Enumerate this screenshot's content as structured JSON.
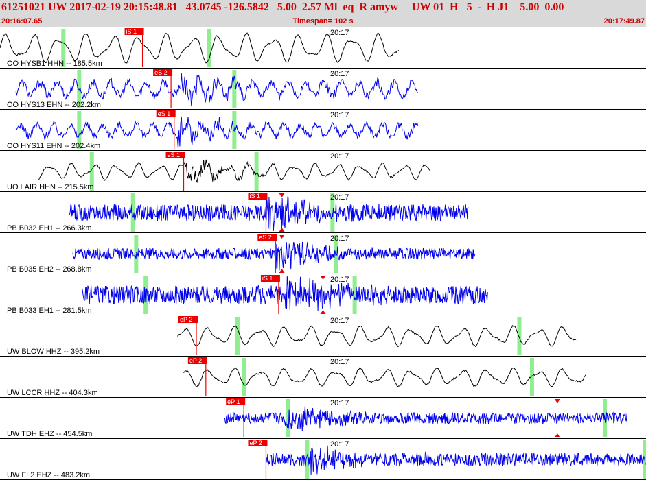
{
  "header": {
    "title": "61251021 UW 2017-02-19 20:15:48.81   43.0745 -126.5842   5.00  2.57 Ml  eq  R amyw     UW 01  H   5  -  H J1    5.00  0.00",
    "start_time": "20:16:07.65",
    "timespan": "Timespan= 102 s",
    "end_time": "20:17:49.87"
  },
  "colors": {
    "blue": "#0000ee",
    "black": "#000000",
    "pick": "#ee0000",
    "marker": "#90ee90",
    "bg": "#ffffff",
    "header_bg": "#d9d9d9"
  },
  "chart_data": {
    "type": "line",
    "title": "61251021 UW 2017-02-19 20:15:48.81   43.0745 -126.5842   5.00  2.57 Ml  eq  R amyw     UW 01  H   5  -  H J1    5.00  0.00",
    "x_start": "20:16:07.65",
    "x_end": "20:17:49.87",
    "timespan_s": 102,
    "minute_label": "20:17",
    "minute_tick_s": 52.35,
    "traces": [
      {
        "label": "OO HYSB1 HHN -- 185.5km",
        "color": "black",
        "start_s": 0,
        "end_s": 63,
        "pick": "iS 1",
        "pick_s": 22.5,
        "green_s": [
          10,
          33
        ],
        "style": "smooth",
        "amp": 0.8,
        "period": 4.2,
        "burst_s": null,
        "burst_amp": 0
      },
      {
        "label": "OO HYS13 EHN -- 202.2km",
        "color": "blue",
        "start_s": 2.5,
        "end_s": 66,
        "pick": "eS 2",
        "pick_s": 27,
        "green_s": [
          12.5,
          37
        ],
        "style": "noisy",
        "amp": 0.6,
        "period": 2.8,
        "burst_s": 28,
        "burst_amp": 0.8
      },
      {
        "label": "OO HYS11 EHN -- 202.4km",
        "color": "blue",
        "start_s": 2.5,
        "end_s": 66,
        "pick": "eS 1",
        "pick_s": 27.5,
        "green_s": [
          12.5,
          37
        ],
        "style": "noisy",
        "amp": 0.5,
        "period": 2.6,
        "burst_s": 28,
        "burst_amp": 0.85
      },
      {
        "label": "UO LAIR HHN -- 215.5km",
        "color": "black",
        "start_s": 6,
        "end_s": 68,
        "pick": "eS 1",
        "pick_s": 29,
        "green_s": [
          14.5,
          40.5
        ],
        "style": "smooth",
        "amp": 0.45,
        "period": 3.5,
        "burst_s": 29,
        "burst_amp": 0.6
      },
      {
        "label": "PB B032 EH1 -- 266.3km",
        "color": "blue",
        "start_s": 11,
        "end_s": 74,
        "pick": "iS 1",
        "pick_s": 42,
        "green_s": [
          21,
          52.5
        ],
        "style": "hf",
        "amp": 0.45,
        "period": 0.6,
        "burst_s": 42,
        "burst_amp": 1.0,
        "amp_markers_s": [
          44.5
        ]
      },
      {
        "label": "PB B035 EH2 -- 268.8km",
        "color": "blue",
        "start_s": 11.5,
        "end_s": 75,
        "pick": "eS 2",
        "pick_s": 43.5,
        "green_s": [
          21.5,
          53
        ],
        "style": "hf",
        "amp": 0.3,
        "period": 0.6,
        "burst_s": 43.5,
        "burst_amp": 1.0,
        "amp_markers_s": [
          44.5
        ]
      },
      {
        "label": "PB B033 EH1 -- 281.5km",
        "color": "blue",
        "start_s": 13,
        "end_s": 77,
        "pick": "iS 1",
        "pick_s": 44,
        "green_s": [
          23,
          56
        ],
        "style": "hf",
        "amp": 0.5,
        "period": 0.6,
        "burst_s": 45,
        "burst_amp": 1.0,
        "amp_markers_s": [
          51
        ]
      },
      {
        "label": "UW BLOW HHZ -- 395.2km",
        "color": "black",
        "start_s": 28,
        "end_s": 91,
        "pick": "eP 2",
        "pick_s": 31,
        "green_s": [
          37.5,
          82
        ],
        "style": "smooth",
        "amp": 0.55,
        "period": 4.0,
        "burst_s": null,
        "burst_amp": 0
      },
      {
        "label": "UW LCCR HHZ -- 404.3km",
        "color": "black",
        "start_s": 29,
        "end_s": 92.5,
        "pick": "eP 2",
        "pick_s": 32.5,
        "green_s": [
          38.5,
          84
        ],
        "style": "smooth",
        "amp": 0.5,
        "period": 4.0,
        "burst_s": null,
        "burst_amp": 0
      },
      {
        "label": "UW TDH EHZ -- 454.5km",
        "color": "blue",
        "start_s": 35.5,
        "end_s": 99,
        "pick": "eP 1",
        "pick_s": 38.5,
        "green_s": [
          45.5,
          95.5
        ],
        "style": "hf",
        "amp": 0.3,
        "period": 0.5,
        "burst_s": 45,
        "burst_amp": 0.8,
        "amp_markers_s": [
          88
        ]
      },
      {
        "label": "UW FL2 EHZ -- 483.2km",
        "color": "blue",
        "start_s": 42,
        "end_s": 102,
        "pick": "eP 2",
        "pick_s": 42,
        "green_s": [
          48.5,
          101.8
        ],
        "style": "hf",
        "amp": 0.35,
        "period": 0.5,
        "burst_s": 49,
        "burst_amp": 0.8
      }
    ]
  }
}
